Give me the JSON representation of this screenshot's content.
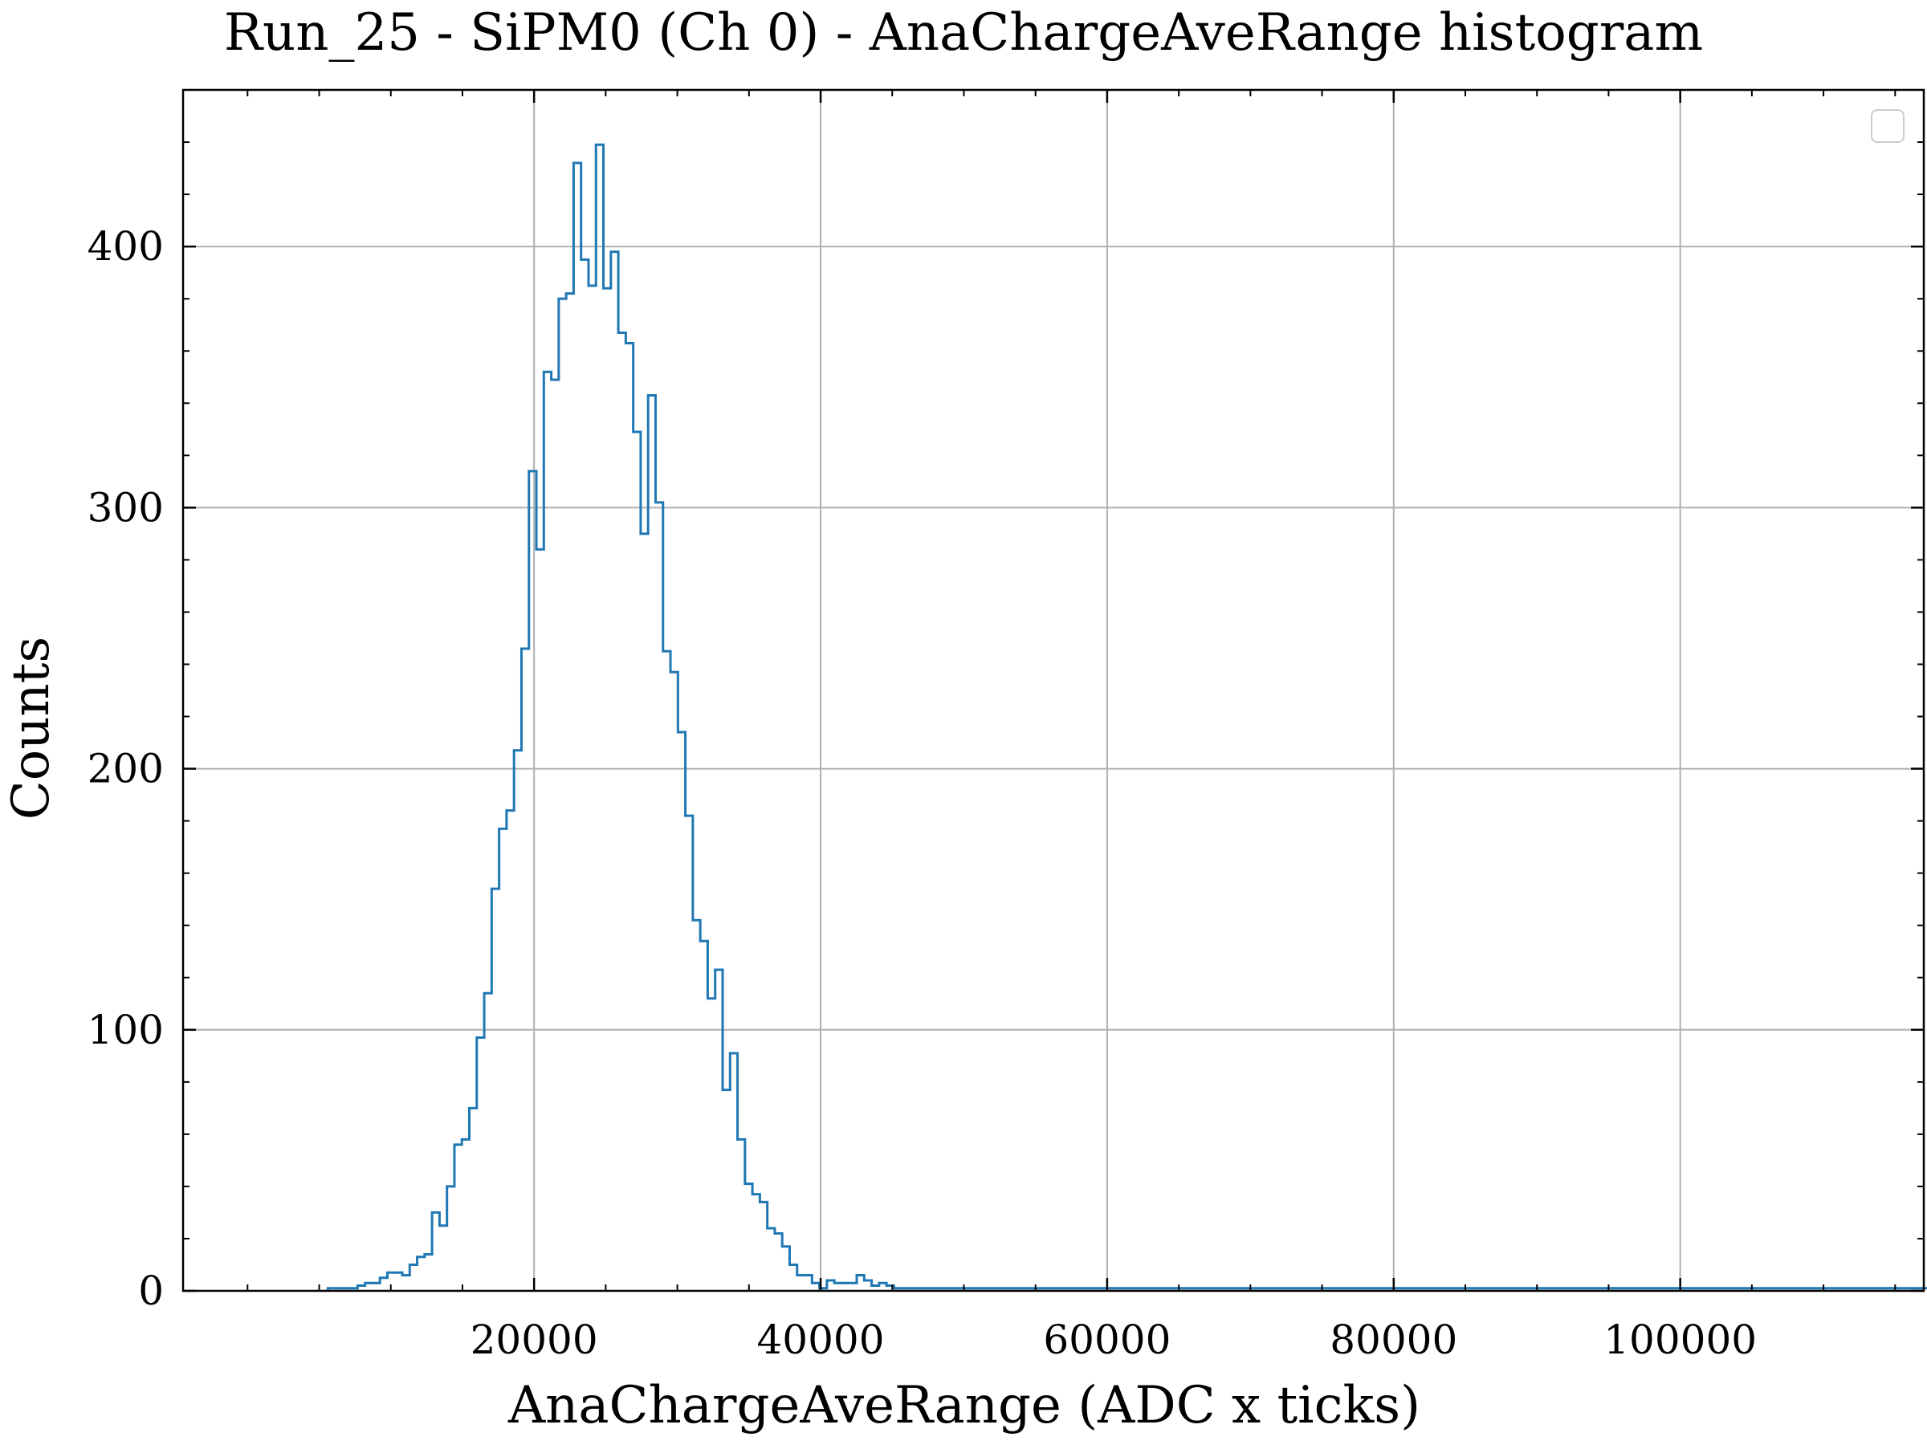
{
  "chart_data": {
    "type": "histogram",
    "title": "Run_25 - SiPM0 (Ch 0) - AnaChargeAveRange histogram",
    "xlabel": "AnaChargeAveRange (ADC x ticks)",
    "ylabel": "Counts",
    "xlim": [
      -4500,
      117000
    ],
    "ylim": [
      0,
      460
    ],
    "xticks": [
      20000,
      40000,
      60000,
      80000,
      100000
    ],
    "xtick_labels": [
      "20000",
      "40000",
      "60000",
      "80000",
      "100000"
    ],
    "yticks": [
      0,
      100,
      200,
      300,
      400
    ],
    "ytick_labels": [
      "0",
      "100",
      "200",
      "300",
      "400"
    ],
    "grid": true,
    "legend": "top-right, empty",
    "bin_start": 5600,
    "bin_width": 520,
    "series": [
      {
        "color": "#1f77b4",
        "counts": [
          1,
          1,
          1,
          1,
          2,
          3,
          3,
          5,
          7,
          7,
          6,
          10,
          13,
          14,
          30,
          25,
          40,
          56,
          58,
          70,
          97,
          114,
          154,
          177,
          184,
          207,
          246,
          314,
          284,
          352,
          349,
          380,
          382,
          432,
          395,
          385,
          439,
          384,
          398,
          367,
          363,
          329,
          290,
          343,
          302,
          245,
          237,
          214,
          182,
          142,
          134,
          112,
          123,
          77,
          91,
          58,
          41,
          37,
          34,
          24,
          22,
          17,
          10,
          6,
          6,
          3,
          1,
          4,
          3,
          3,
          3,
          6,
          4,
          2,
          3,
          2,
          1,
          1,
          1,
          1,
          1,
          1,
          1,
          1,
          1,
          1,
          1,
          1,
          1,
          1,
          1,
          1,
          1,
          1,
          1,
          1,
          1,
          1,
          1,
          1,
          1,
          1,
          1,
          1,
          1,
          1,
          1,
          1,
          1,
          1,
          1,
          1,
          1,
          1,
          1,
          1,
          1,
          1,
          1,
          1,
          1,
          1,
          1,
          1,
          1,
          1,
          1,
          1,
          1,
          1,
          1,
          1,
          1,
          1,
          1,
          1,
          1,
          1,
          1,
          1,
          1,
          1,
          1,
          1,
          1,
          1,
          1,
          1,
          1,
          1,
          1,
          1,
          1,
          1,
          1,
          1,
          1,
          1,
          1,
          1,
          1,
          1,
          1,
          1,
          1,
          1,
          1,
          1,
          1,
          1,
          1,
          1,
          1,
          1,
          1,
          1,
          1,
          1,
          1,
          1,
          1,
          1,
          1,
          1,
          1,
          1,
          1,
          1,
          1,
          1,
          1,
          1,
          1,
          1,
          1,
          1,
          1,
          1,
          1,
          1,
          1,
          1,
          1,
          1,
          1,
          1,
          1,
          1,
          1,
          1,
          1,
          1,
          1,
          1,
          1,
          1,
          1,
          1
        ]
      }
    ]
  }
}
